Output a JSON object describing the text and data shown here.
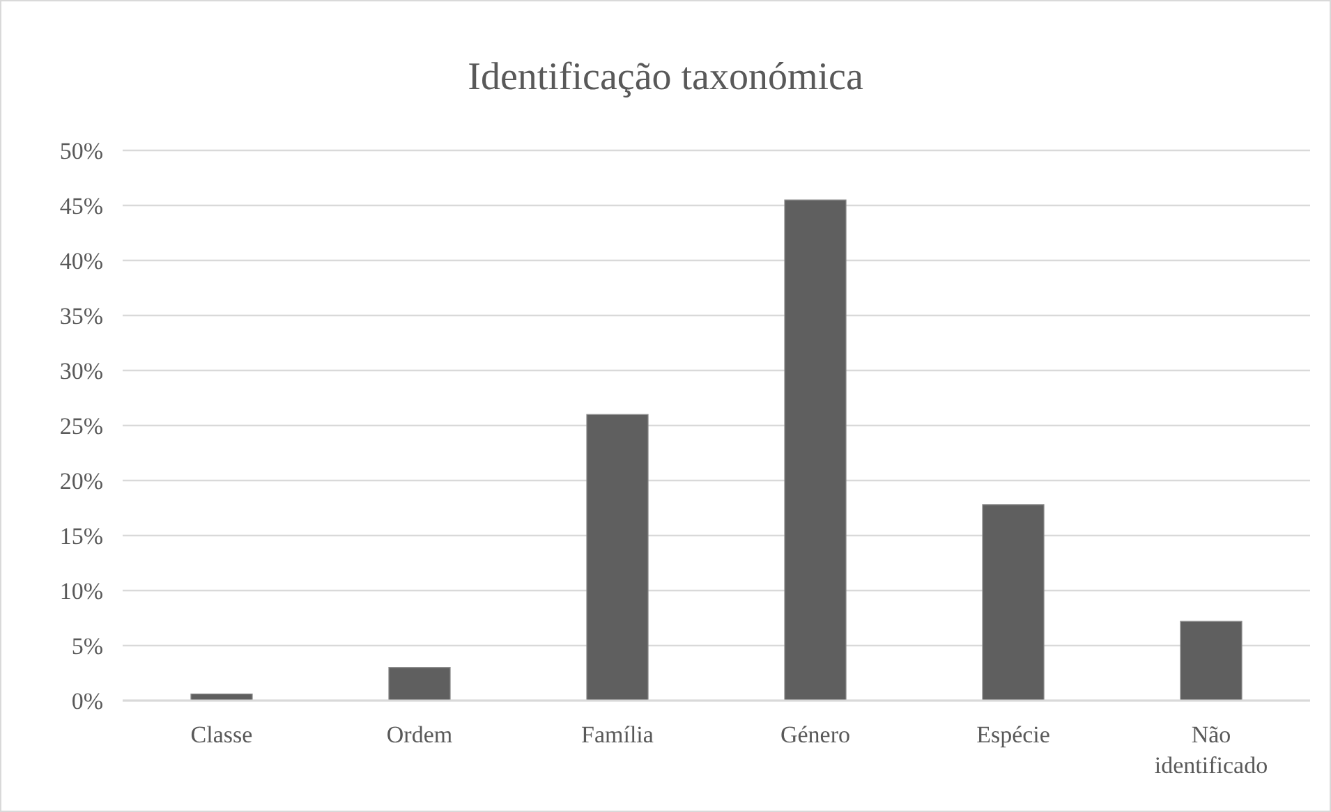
{
  "chart_data": {
    "type": "bar",
    "title": "Identificação taxonómica",
    "categories": [
      "Classe",
      "Ordem",
      "Família",
      "Género",
      "Espécie",
      "Não identificado"
    ],
    "values": [
      0.6,
      3.0,
      26.0,
      45.5,
      17.8,
      7.2
    ],
    "color": "#5f5f5f",
    "ylim": [
      0,
      50
    ],
    "yticks": [
      {
        "value": 0,
        "label": "0%"
      },
      {
        "value": 5,
        "label": "5%"
      },
      {
        "value": 10,
        "label": "10%"
      },
      {
        "value": 15,
        "label": "15%"
      },
      {
        "value": 20,
        "label": "20%"
      },
      {
        "value": 25,
        "label": "25%"
      },
      {
        "value": 30,
        "label": "30%"
      },
      {
        "value": 35,
        "label": "35%"
      },
      {
        "value": 40,
        "label": "40%"
      },
      {
        "value": 45,
        "label": "45%"
      },
      {
        "value": 50,
        "label": "50%"
      }
    ],
    "grid": "y"
  }
}
